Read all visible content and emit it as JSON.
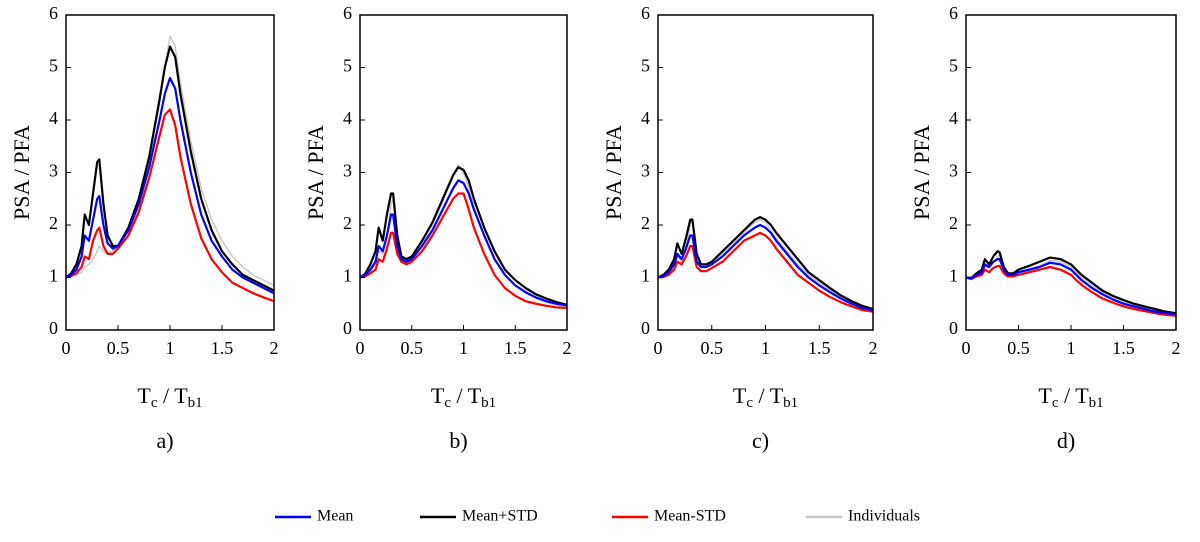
{
  "chart_data": [
    {
      "type": "line",
      "label": "a)",
      "ylabel": "PSA / PFA",
      "xlabel": [
        "T",
        "c",
        " / T",
        "b1"
      ],
      "xlim": [
        0,
        2
      ],
      "ylim": [
        0,
        6
      ],
      "xticks": [
        0,
        0.5,
        1,
        1.5,
        2
      ],
      "yticks": [
        0,
        1,
        2,
        3,
        4,
        5,
        6
      ],
      "x": [
        0,
        0.05,
        0.1,
        0.15,
        0.18,
        0.22,
        0.26,
        0.3,
        0.32,
        0.36,
        0.4,
        0.45,
        0.5,
        0.6,
        0.7,
        0.8,
        0.9,
        0.95,
        1.0,
        1.05,
        1.1,
        1.2,
        1.3,
        1.4,
        1.5,
        1.6,
        1.7,
        1.8,
        1.9,
        2.0
      ],
      "series": [
        {
          "name": "Mean",
          "color": "#0000ff",
          "values": [
            1.0,
            1.05,
            1.15,
            1.4,
            1.8,
            1.7,
            2.1,
            2.5,
            2.55,
            2.0,
            1.65,
            1.55,
            1.6,
            1.9,
            2.4,
            3.1,
            4.0,
            4.5,
            4.8,
            4.6,
            4.0,
            3.0,
            2.2,
            1.7,
            1.4,
            1.15,
            1.0,
            0.9,
            0.8,
            0.7
          ]
        },
        {
          "name": "Mean+STD",
          "color": "#000000",
          "values": [
            1.0,
            1.08,
            1.25,
            1.6,
            2.2,
            2.0,
            2.6,
            3.2,
            3.25,
            2.4,
            1.8,
            1.6,
            1.6,
            1.95,
            2.5,
            3.3,
            4.4,
            5.0,
            5.4,
            5.2,
            4.5,
            3.4,
            2.5,
            1.9,
            1.5,
            1.25,
            1.05,
            0.95,
            0.85,
            0.75
          ]
        },
        {
          "name": "Mean-STD",
          "color": "#ff0000",
          "values": [
            1.0,
            1.03,
            1.08,
            1.2,
            1.4,
            1.35,
            1.7,
            1.9,
            1.95,
            1.6,
            1.45,
            1.45,
            1.55,
            1.8,
            2.25,
            2.9,
            3.7,
            4.1,
            4.2,
            3.9,
            3.3,
            2.4,
            1.75,
            1.35,
            1.1,
            0.9,
            0.8,
            0.7,
            0.62,
            0.55
          ]
        },
        {
          "name": "Individuals",
          "color": "#c8c8c8",
          "values": [
            1.0,
            1.02,
            1.05,
            1.1,
            1.2,
            1.25,
            1.35,
            1.5,
            1.6,
            1.5,
            1.45,
            1.5,
            1.6,
            1.9,
            2.4,
            3.2,
            4.3,
            5.0,
            5.6,
            5.4,
            4.7,
            3.6,
            2.7,
            2.1,
            1.7,
            1.4,
            1.2,
            1.05,
            0.95,
            0.85
          ]
        }
      ]
    },
    {
      "type": "line",
      "label": "b)",
      "ylabel": "PSA / PFA",
      "xlabel": [
        "T",
        "c",
        " / T",
        "b1"
      ],
      "xlim": [
        0,
        2
      ],
      "ylim": [
        0,
        6
      ],
      "xticks": [
        0,
        0.5,
        1,
        1.5,
        2
      ],
      "yticks": [
        0,
        1,
        2,
        3,
        4,
        5,
        6
      ],
      "x": [
        0,
        0.05,
        0.1,
        0.15,
        0.18,
        0.22,
        0.26,
        0.3,
        0.32,
        0.36,
        0.4,
        0.45,
        0.5,
        0.6,
        0.7,
        0.8,
        0.9,
        0.95,
        1.0,
        1.05,
        1.1,
        1.2,
        1.3,
        1.4,
        1.5,
        1.6,
        1.7,
        1.8,
        1.9,
        2.0
      ],
      "series": [
        {
          "name": "Mean",
          "color": "#0000ff",
          "values": [
            1.0,
            1.05,
            1.15,
            1.3,
            1.6,
            1.5,
            1.8,
            2.2,
            2.2,
            1.6,
            1.35,
            1.3,
            1.35,
            1.6,
            1.9,
            2.3,
            2.7,
            2.85,
            2.8,
            2.6,
            2.3,
            1.8,
            1.35,
            1.05,
            0.85,
            0.72,
            0.62,
            0.55,
            0.5,
            0.47
          ]
        },
        {
          "name": "Mean+STD",
          "color": "#000000",
          "values": [
            1.0,
            1.07,
            1.25,
            1.5,
            1.95,
            1.7,
            2.2,
            2.6,
            2.6,
            1.8,
            1.4,
            1.35,
            1.4,
            1.7,
            2.05,
            2.5,
            2.95,
            3.1,
            3.05,
            2.85,
            2.5,
            1.95,
            1.5,
            1.15,
            0.95,
            0.8,
            0.68,
            0.6,
            0.53,
            0.48
          ]
        },
        {
          "name": "Mean-STD",
          "color": "#ff0000",
          "values": [
            1.0,
            1.02,
            1.08,
            1.15,
            1.35,
            1.3,
            1.55,
            1.85,
            1.85,
            1.45,
            1.3,
            1.25,
            1.3,
            1.5,
            1.8,
            2.15,
            2.5,
            2.6,
            2.6,
            2.3,
            1.95,
            1.45,
            1.05,
            0.8,
            0.65,
            0.55,
            0.5,
            0.46,
            0.43,
            0.42
          ]
        },
        {
          "name": "Individuals",
          "color": "#c8c8c8",
          "values": [
            1.0,
            1.04,
            1.12,
            1.25,
            1.5,
            1.45,
            1.75,
            2.4,
            2.5,
            1.7,
            1.35,
            1.3,
            1.35,
            1.65,
            2.0,
            2.45,
            2.95,
            3.15,
            3.0,
            2.7,
            2.35,
            1.8,
            1.35,
            1.05,
            0.85,
            0.7,
            0.6,
            0.52,
            0.47,
            0.44
          ]
        }
      ]
    },
    {
      "type": "line",
      "label": "c)",
      "ylabel": "PSA / PFA",
      "xlabel": [
        "T",
        "c",
        " / T",
        "b1"
      ],
      "xlim": [
        0,
        2
      ],
      "ylim": [
        0,
        6
      ],
      "xticks": [
        0,
        0.5,
        1,
        1.5,
        2
      ],
      "yticks": [
        0,
        1,
        2,
        3,
        4,
        5,
        6
      ],
      "x": [
        0,
        0.05,
        0.1,
        0.15,
        0.18,
        0.22,
        0.26,
        0.3,
        0.32,
        0.36,
        0.4,
        0.45,
        0.5,
        0.6,
        0.7,
        0.8,
        0.9,
        0.95,
        1.0,
        1.05,
        1.1,
        1.2,
        1.3,
        1.4,
        1.5,
        1.6,
        1.7,
        1.8,
        1.9,
        2.0
      ],
      "series": [
        {
          "name": "Mean",
          "color": "#0000ff",
          "values": [
            1.0,
            1.03,
            1.1,
            1.25,
            1.45,
            1.35,
            1.55,
            1.8,
            1.8,
            1.3,
            1.2,
            1.2,
            1.25,
            1.4,
            1.6,
            1.8,
            1.95,
            2.0,
            1.95,
            1.85,
            1.7,
            1.45,
            1.2,
            1.0,
            0.85,
            0.72,
            0.6,
            0.5,
            0.42,
            0.38
          ]
        },
        {
          "name": "Mean+STD",
          "color": "#000000",
          "values": [
            1.0,
            1.05,
            1.15,
            1.35,
            1.65,
            1.45,
            1.75,
            2.1,
            2.1,
            1.45,
            1.25,
            1.25,
            1.3,
            1.5,
            1.7,
            1.9,
            2.1,
            2.15,
            2.1,
            2.0,
            1.85,
            1.6,
            1.35,
            1.1,
            0.95,
            0.8,
            0.66,
            0.55,
            0.46,
            0.4
          ]
        },
        {
          "name": "Mean-STD",
          "color": "#ff0000",
          "values": [
            1.0,
            1.01,
            1.05,
            1.15,
            1.3,
            1.25,
            1.4,
            1.6,
            1.6,
            1.2,
            1.12,
            1.12,
            1.18,
            1.3,
            1.5,
            1.7,
            1.8,
            1.85,
            1.8,
            1.7,
            1.55,
            1.3,
            1.05,
            0.9,
            0.75,
            0.63,
            0.53,
            0.45,
            0.38,
            0.35
          ]
        },
        {
          "name": "Individuals",
          "color": "#c8c8c8",
          "values": [
            1.0,
            1.02,
            1.08,
            1.2,
            1.4,
            1.3,
            1.6,
            2.0,
            2.15,
            1.4,
            1.2,
            1.2,
            1.25,
            1.45,
            1.65,
            1.85,
            2.05,
            2.1,
            2.05,
            1.9,
            1.75,
            1.5,
            1.25,
            1.05,
            0.9,
            0.76,
            0.63,
            0.52,
            0.44,
            0.39
          ]
        }
      ]
    },
    {
      "type": "line",
      "label": "d)",
      "ylabel": "PSA / PFA",
      "xlabel": [
        "T",
        "c",
        " / T",
        "b1"
      ],
      "xlim": [
        0,
        2
      ],
      "ylim": [
        0,
        6
      ],
      "xticks": [
        0,
        0.5,
        1,
        1.5,
        2
      ],
      "yticks": [
        0,
        1,
        2,
        3,
        4,
        5,
        6
      ],
      "x": [
        0,
        0.05,
        0.1,
        0.15,
        0.18,
        0.22,
        0.26,
        0.3,
        0.32,
        0.36,
        0.4,
        0.45,
        0.5,
        0.6,
        0.7,
        0.8,
        0.9,
        0.95,
        1.0,
        1.05,
        1.1,
        1.2,
        1.3,
        1.4,
        1.5,
        1.6,
        1.7,
        1.8,
        1.9,
        2.0
      ],
      "series": [
        {
          "name": "Mean",
          "color": "#0000ff",
          "values": [
            1.0,
            0.98,
            1.05,
            1.1,
            1.25,
            1.2,
            1.3,
            1.35,
            1.35,
            1.15,
            1.05,
            1.05,
            1.1,
            1.15,
            1.2,
            1.28,
            1.25,
            1.2,
            1.15,
            1.05,
            0.95,
            0.8,
            0.68,
            0.58,
            0.5,
            0.45,
            0.4,
            0.35,
            0.32,
            0.3
          ]
        },
        {
          "name": "Mean+STD",
          "color": "#000000",
          "values": [
            1.0,
            0.99,
            1.08,
            1.15,
            1.35,
            1.25,
            1.4,
            1.5,
            1.48,
            1.2,
            1.08,
            1.08,
            1.15,
            1.22,
            1.3,
            1.38,
            1.35,
            1.3,
            1.25,
            1.15,
            1.05,
            0.9,
            0.75,
            0.65,
            0.57,
            0.5,
            0.45,
            0.4,
            0.35,
            0.32
          ]
        },
        {
          "name": "Mean-STD",
          "color": "#ff0000",
          "values": [
            1.0,
            0.97,
            1.02,
            1.05,
            1.15,
            1.1,
            1.18,
            1.22,
            1.22,
            1.08,
            1.02,
            1.02,
            1.05,
            1.1,
            1.15,
            1.2,
            1.15,
            1.1,
            1.05,
            0.95,
            0.86,
            0.72,
            0.6,
            0.52,
            0.45,
            0.4,
            0.36,
            0.32,
            0.29,
            0.27
          ]
        },
        {
          "name": "Individuals",
          "color": "#c8c8c8",
          "values": [
            1.0,
            0.98,
            1.04,
            1.08,
            1.2,
            1.18,
            1.28,
            1.4,
            1.42,
            1.15,
            1.04,
            1.04,
            1.1,
            1.16,
            1.22,
            1.32,
            1.3,
            1.25,
            1.2,
            1.1,
            1.0,
            0.85,
            0.72,
            0.62,
            0.54,
            0.48,
            0.43,
            0.38,
            0.34,
            0.31
          ]
        }
      ]
    }
  ]
}
